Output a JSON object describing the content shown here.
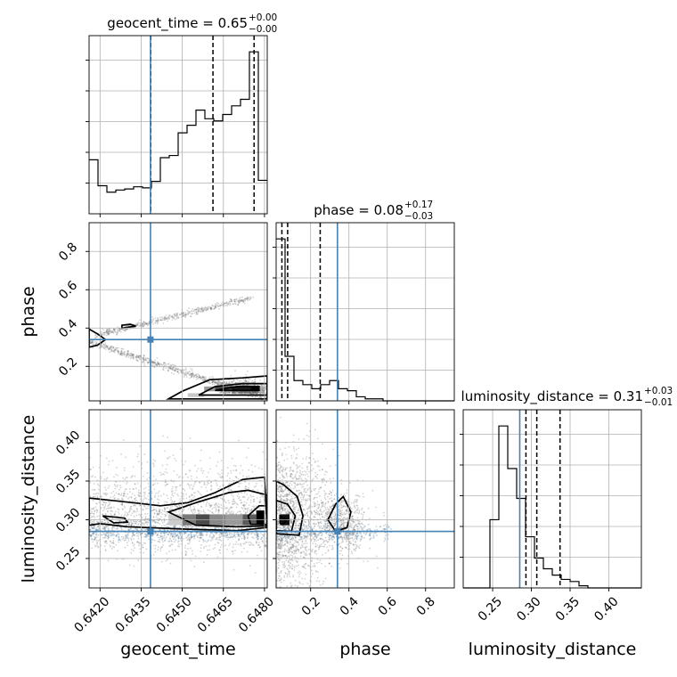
{
  "chart_data": {
    "type": "corner",
    "parameters": [
      "geocent_time",
      "phase",
      "luminosity_distance"
    ],
    "titles": [
      {
        "param": "geocent_time",
        "value": "0.65",
        "plus": "+0.00",
        "minus": "−0.00"
      },
      {
        "param": "phase",
        "value": "0.08",
        "plus": "+0.17",
        "minus": "−0.03"
      },
      {
        "param": "luminosity_distance",
        "value": "0.31",
        "plus": "+0.03",
        "minus": "−0.01"
      }
    ],
    "ranges": {
      "geocent_time": [
        0.6416,
        0.6481
      ],
      "phase": [
        0.02,
        0.95
      ],
      "luminosity_distance": [
        0.212,
        0.442
      ]
    },
    "ticks": {
      "geocent_time": [
        "0.6420",
        "0.6435",
        "0.6450",
        "0.6465",
        "0.6480"
      ],
      "phase": [
        "0.2",
        "0.4",
        "0.6",
        "0.8"
      ],
      "luminosity_distance": [
        "0.25",
        "0.30",
        "0.35",
        "0.40"
      ]
    },
    "tick_values": {
      "geocent_time": [
        0.642,
        0.6435,
        0.645,
        0.6465,
        0.648
      ],
      "phase": [
        0.2,
        0.4,
        0.6,
        0.8
      ],
      "luminosity_distance": [
        0.25,
        0.3,
        0.35,
        0.4
      ]
    },
    "truths": {
      "geocent_time": 0.64384,
      "phase": 0.34,
      "luminosity_distance": 0.285
    },
    "quantiles": {
      "geocent_time": [
        0.64385,
        0.64612,
        0.64762
      ],
      "phase": [
        0.05,
        0.08,
        0.25
      ],
      "luminosity_distance": [
        0.293,
        0.307,
        0.337
      ]
    },
    "histograms": {
      "geocent_time": [
        0.5,
        0.26,
        0.2,
        0.22,
        0.23,
        0.25,
        0.24,
        0.3,
        0.52,
        0.54,
        0.75,
        0.82,
        0.96,
        0.88,
        0.86,
        0.92,
        1.0,
        1.06,
        1.5,
        0.31
      ],
      "phase": [
        0.8,
        0.22,
        0.1,
        0.08,
        0.06,
        0.08,
        0.1,
        0.06,
        0.05,
        0.02,
        0.01,
        0.01,
        0.0,
        0.0,
        0.0,
        0.0,
        0.0,
        0.0,
        0.0,
        0.0
      ],
      "luminosity_distance": [
        0.0,
        0.0,
        0.0,
        0.32,
        0.76,
        0.56,
        0.42,
        0.24,
        0.14,
        0.09,
        0.06,
        0.04,
        0.03,
        0.01,
        0.0,
        0.0,
        0.0,
        0.0,
        0.0,
        0.0
      ]
    },
    "truth_color": "#4682b4",
    "line_color": "#000000",
    "grid": true
  }
}
